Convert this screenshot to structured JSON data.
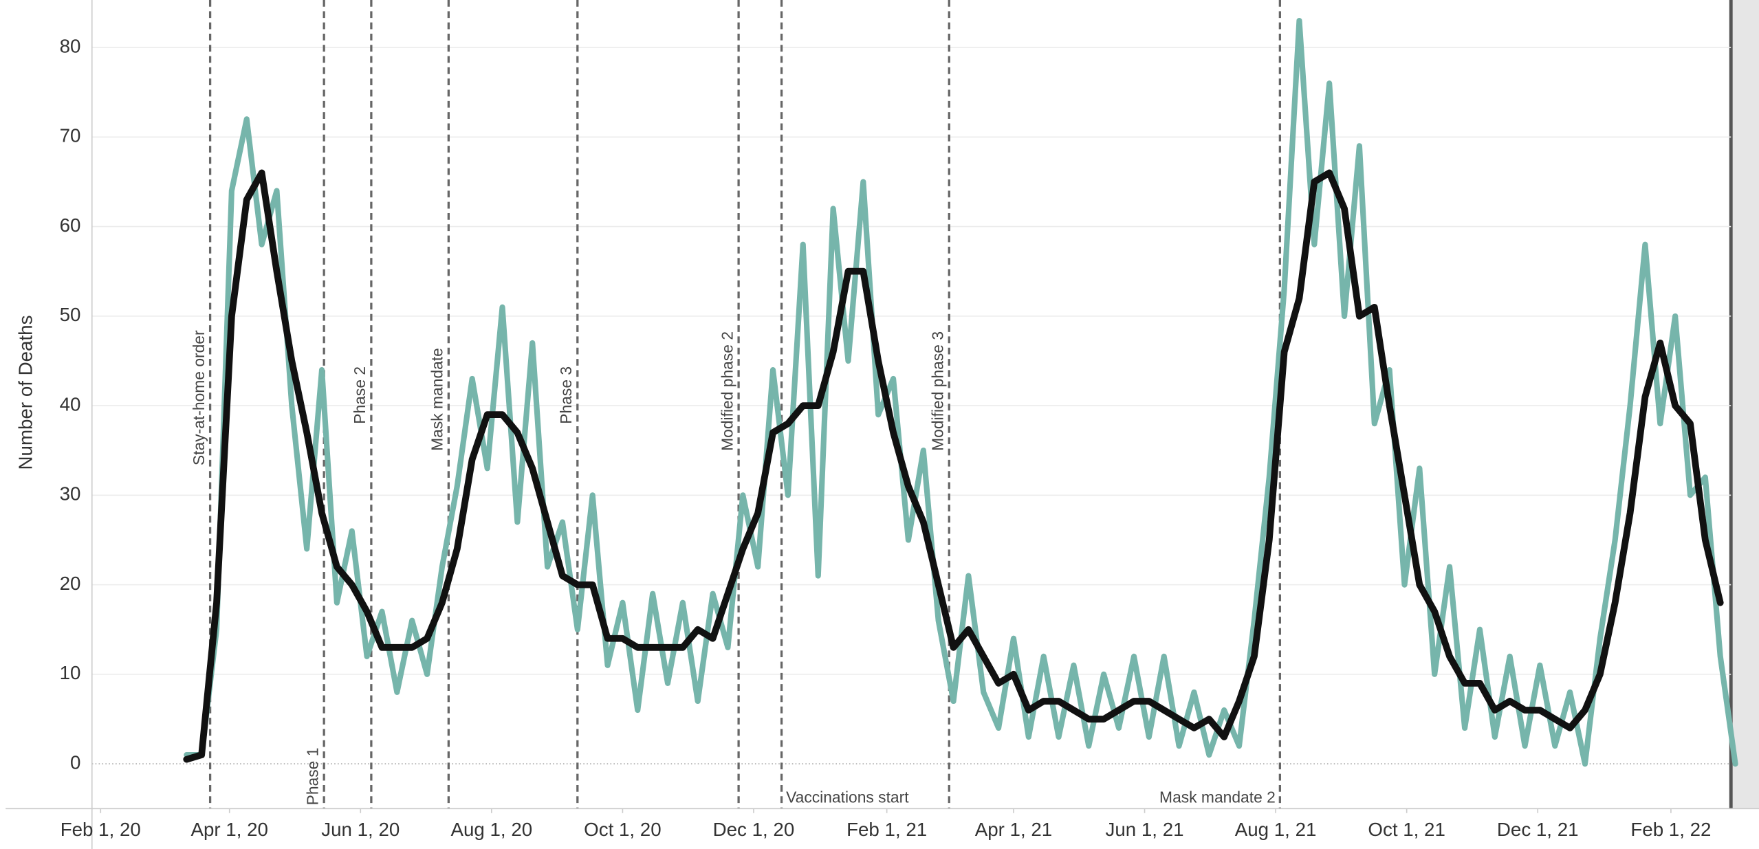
{
  "chart_data": {
    "type": "line",
    "y_label": "Number of Deaths",
    "x": [
      "2020-03-12",
      "2020-03-19",
      "2020-03-26",
      "2020-04-02",
      "2020-04-09",
      "2020-04-16",
      "2020-04-23",
      "2020-04-30",
      "2020-05-07",
      "2020-05-14",
      "2020-05-21",
      "2020-05-28",
      "2020-06-04",
      "2020-06-11",
      "2020-06-18",
      "2020-06-25",
      "2020-07-02",
      "2020-07-09",
      "2020-07-16",
      "2020-07-23",
      "2020-07-30",
      "2020-08-06",
      "2020-08-13",
      "2020-08-20",
      "2020-08-27",
      "2020-09-03",
      "2020-09-10",
      "2020-09-17",
      "2020-09-24",
      "2020-10-01",
      "2020-10-08",
      "2020-10-15",
      "2020-10-22",
      "2020-10-29",
      "2020-11-05",
      "2020-11-12",
      "2020-11-19",
      "2020-11-26",
      "2020-12-03",
      "2020-12-10",
      "2020-12-17",
      "2020-12-24",
      "2020-12-31",
      "2021-01-07",
      "2021-01-14",
      "2021-01-21",
      "2021-01-28",
      "2021-02-04",
      "2021-02-11",
      "2021-02-18",
      "2021-02-25",
      "2021-03-04",
      "2021-03-11",
      "2021-03-18",
      "2021-03-25",
      "2021-04-01",
      "2021-04-08",
      "2021-04-15",
      "2021-04-22",
      "2021-04-29",
      "2021-05-06",
      "2021-05-13",
      "2021-05-20",
      "2021-05-27",
      "2021-06-03",
      "2021-06-10",
      "2021-06-17",
      "2021-06-24",
      "2021-07-01",
      "2021-07-08",
      "2021-07-15",
      "2021-07-22",
      "2021-07-29",
      "2021-08-05",
      "2021-08-12",
      "2021-08-19",
      "2021-08-26",
      "2021-09-02",
      "2021-09-09",
      "2021-09-16",
      "2021-09-23",
      "2021-09-30",
      "2021-10-07",
      "2021-10-14",
      "2021-10-21",
      "2021-10-28",
      "2021-11-04",
      "2021-11-11",
      "2021-11-18",
      "2021-11-25",
      "2021-12-02",
      "2021-12-09",
      "2021-12-16",
      "2021-12-23",
      "2021-12-30",
      "2022-01-06",
      "2022-01-13",
      "2022-01-20",
      "2022-01-27",
      "2022-02-03",
      "2022-02-10",
      "2022-02-17",
      "2022-02-24",
      "2022-03-03"
    ],
    "series": [
      {
        "color": "#76b5ab",
        "values": [
          1,
          1,
          15,
          64,
          72,
          58,
          64,
          40,
          24,
          44,
          18,
          26,
          12,
          17,
          8,
          16,
          10,
          22,
          31,
          43,
          33,
          51,
          27,
          47,
          22,
          27,
          15,
          30,
          11,
          18,
          6,
          19,
          9,
          18,
          7,
          19,
          13,
          30,
          22,
          44,
          30,
          58,
          21,
          62,
          45,
          65,
          39,
          43,
          25,
          35,
          16,
          7,
          21,
          8,
          4,
          14,
          3,
          12,
          3,
          11,
          2,
          10,
          4,
          12,
          3,
          12,
          2,
          8,
          1,
          6,
          2,
          16,
          32,
          53,
          83,
          58,
          76,
          50,
          69,
          38,
          44,
          20,
          33,
          10,
          22,
          4,
          15,
          3,
          12,
          2,
          11,
          2,
          8,
          0,
          14,
          25,
          40,
          58,
          38,
          50,
          30,
          32,
          12,
          0
        ]
      },
      {
        "color": "#111111",
        "values": [
          0.5,
          1,
          18,
          50,
          63,
          66,
          55,
          45,
          37,
          28,
          22,
          20,
          17,
          13,
          13,
          13,
          14,
          18,
          24,
          34,
          39,
          39,
          37,
          33,
          27,
          21,
          20,
          20,
          14,
          14,
          13,
          13,
          13,
          13,
          15,
          14,
          19,
          24,
          28,
          37,
          38,
          40,
          40,
          46,
          55,
          55,
          45,
          37,
          31,
          27,
          20,
          13,
          15,
          12,
          9,
          10,
          6,
          7,
          7,
          6,
          5,
          5,
          6,
          7,
          7,
          6,
          5,
          4,
          5,
          3,
          7,
          12,
          25,
          46,
          52,
          65,
          66,
          62,
          50,
          51,
          40,
          30,
          20,
          17,
          12,
          9,
          9,
          6,
          7,
          6,
          6,
          5,
          4,
          6,
          10,
          18,
          28,
          41,
          47,
          40,
          38,
          25,
          18,
          null
        ]
      }
    ],
    "xlim": [
      "2020-01-28",
      "2022-03-14"
    ],
    "xticks": [
      {
        "value": "2020-02-01",
        "label": "Feb 1, 20"
      },
      {
        "value": "2020-04-01",
        "label": "Apr 1, 20"
      },
      {
        "value": "2020-06-01",
        "label": "Jun 1, 20"
      },
      {
        "value": "2020-08-01",
        "label": "Aug 1, 20"
      },
      {
        "value": "2020-10-01",
        "label": "Oct 1, 20"
      },
      {
        "value": "2020-12-01",
        "label": "Dec 1, 20"
      },
      {
        "value": "2021-02-01",
        "label": "Feb 1, 21"
      },
      {
        "value": "2021-04-01",
        "label": "Apr 1, 21"
      },
      {
        "value": "2021-06-01",
        "label": "Jun 1, 21"
      },
      {
        "value": "2021-08-01",
        "label": "Aug 1, 21"
      },
      {
        "value": "2021-10-01",
        "label": "Oct 1, 21"
      },
      {
        "value": "2021-12-01",
        "label": "Dec 1, 21"
      },
      {
        "value": "2022-02-01",
        "label": "Feb 1, 22"
      }
    ],
    "ylim": [
      -5,
      85.3
    ],
    "yticks": [
      0,
      10,
      20,
      30,
      40,
      50,
      60,
      70,
      80
    ],
    "grid": true,
    "events": [
      {
        "date": "2020-03-23",
        "label": "Stay-at-home order"
      },
      {
        "date": "2020-05-15",
        "label": "Phase 1"
      },
      {
        "date": "2020-06-06",
        "label": "Phase 2"
      },
      {
        "date": "2020-07-12",
        "label": "Mask mandate"
      },
      {
        "date": "2020-09-10",
        "label": "Phase 3"
      },
      {
        "date": "2020-11-24",
        "label": "Modified phase 2"
      },
      {
        "date": "2020-12-14",
        "label": "Vaccinations start"
      },
      {
        "date": "2021-03-02",
        "label": "Modified phase 3"
      },
      {
        "date": "2021-08-03",
        "label": "Mask mandate 2"
      }
    ]
  }
}
